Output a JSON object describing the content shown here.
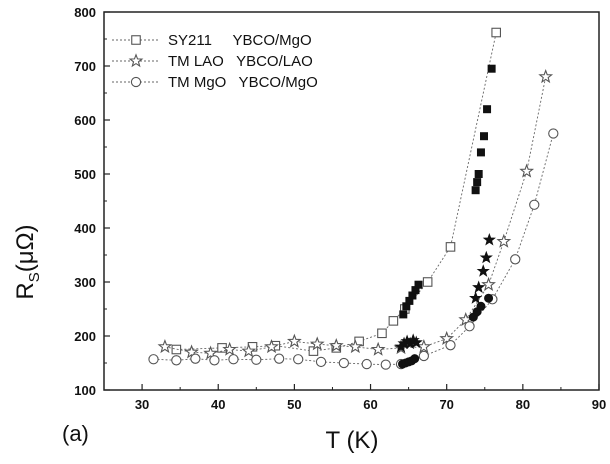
{
  "chart_data": {
    "type": "scatter",
    "panel_label": "(a)",
    "xlabel": "T (K)",
    "ylabel_main": "R",
    "ylabel_sub": "S",
    "ylabel_unit": "(μΩ)",
    "xlim": [
      25,
      90
    ],
    "ylim": [
      100,
      800
    ],
    "x_ticks": [
      30,
      40,
      50,
      60,
      70,
      80,
      90
    ],
    "y_ticks": [
      100,
      200,
      300,
      400,
      500,
      600,
      700,
      800
    ],
    "legend_position": "top-left",
    "series": [
      {
        "name": "SY211 YBCO/MgO",
        "legend_text": "SY211     YBCO/MgO",
        "marker": "square",
        "open_points": [
          {
            "x": 34.5,
            "y": 175
          },
          {
            "x": 40.5,
            "y": 178
          },
          {
            "x": 44.5,
            "y": 180
          },
          {
            "x": 47.5,
            "y": 182
          },
          {
            "x": 52.5,
            "y": 172
          },
          {
            "x": 55.5,
            "y": 178
          },
          {
            "x": 58.5,
            "y": 190
          },
          {
            "x": 61.5,
            "y": 205
          },
          {
            "x": 63.0,
            "y": 228
          },
          {
            "x": 64.5,
            "y": 250
          },
          {
            "x": 67.5,
            "y": 300
          },
          {
            "x": 70.5,
            "y": 365
          },
          {
            "x": 76.5,
            "y": 762
          }
        ],
        "filled_points": [
          {
            "x": 64.3,
            "y": 240
          },
          {
            "x": 64.7,
            "y": 255
          },
          {
            "x": 65.1,
            "y": 265
          },
          {
            "x": 65.5,
            "y": 275
          },
          {
            "x": 65.9,
            "y": 285
          },
          {
            "x": 66.3,
            "y": 295
          },
          {
            "x": 73.8,
            "y": 470
          },
          {
            "x": 74.0,
            "y": 485
          },
          {
            "x": 74.2,
            "y": 500
          },
          {
            "x": 74.5,
            "y": 540
          },
          {
            "x": 74.9,
            "y": 570
          },
          {
            "x": 75.3,
            "y": 620
          },
          {
            "x": 75.9,
            "y": 695
          }
        ]
      },
      {
        "name": "TM LAO YBCO/LAO",
        "legend_text": "TM LAO   YBCO/LAO",
        "marker": "star",
        "open_points": [
          {
            "x": 33.0,
            "y": 180
          },
          {
            "x": 36.5,
            "y": 170
          },
          {
            "x": 39.0,
            "y": 168
          },
          {
            "x": 41.5,
            "y": 175
          },
          {
            "x": 44.0,
            "y": 172
          },
          {
            "x": 47.0,
            "y": 180
          },
          {
            "x": 50.0,
            "y": 190
          },
          {
            "x": 53.0,
            "y": 185
          },
          {
            "x": 55.5,
            "y": 182
          },
          {
            "x": 58.0,
            "y": 180
          },
          {
            "x": 61.0,
            "y": 175
          },
          {
            "x": 64.0,
            "y": 178
          },
          {
            "x": 67.0,
            "y": 180
          },
          {
            "x": 70.0,
            "y": 195
          },
          {
            "x": 72.5,
            "y": 230
          },
          {
            "x": 75.5,
            "y": 295
          },
          {
            "x": 77.5,
            "y": 375
          },
          {
            "x": 80.5,
            "y": 505
          },
          {
            "x": 83.0,
            "y": 680
          }
        ],
        "filled_points": [
          {
            "x": 64.0,
            "y": 180
          },
          {
            "x": 64.4,
            "y": 186
          },
          {
            "x": 64.8,
            "y": 190
          },
          {
            "x": 65.2,
            "y": 186
          },
          {
            "x": 65.6,
            "y": 192
          },
          {
            "x": 66.0,
            "y": 188
          },
          {
            "x": 73.8,
            "y": 270
          },
          {
            "x": 74.2,
            "y": 290
          },
          {
            "x": 74.8,
            "y": 320
          },
          {
            "x": 75.2,
            "y": 345
          },
          {
            "x": 75.6,
            "y": 378
          }
        ]
      },
      {
        "name": "TM MgO YBCO/MgO",
        "legend_text": "TM MgO   YBCO/MgO",
        "marker": "circle",
        "open_points": [
          {
            "x": 31.5,
            "y": 157
          },
          {
            "x": 34.5,
            "y": 155
          },
          {
            "x": 37.0,
            "y": 158
          },
          {
            "x": 39.5,
            "y": 155
          },
          {
            "x": 42.0,
            "y": 157
          },
          {
            "x": 45.0,
            "y": 156
          },
          {
            "x": 48.0,
            "y": 158
          },
          {
            "x": 50.5,
            "y": 157
          },
          {
            "x": 53.5,
            "y": 152
          },
          {
            "x": 56.5,
            "y": 150
          },
          {
            "x": 59.5,
            "y": 148
          },
          {
            "x": 62.0,
            "y": 147
          },
          {
            "x": 64.0,
            "y": 148
          },
          {
            "x": 67.0,
            "y": 163
          },
          {
            "x": 70.5,
            "y": 183
          },
          {
            "x": 73.0,
            "y": 218
          },
          {
            "x": 76.0,
            "y": 268
          },
          {
            "x": 79.0,
            "y": 342
          },
          {
            "x": 81.5,
            "y": 443
          },
          {
            "x": 84.0,
            "y": 575
          }
        ],
        "filled_points": [
          {
            "x": 64.2,
            "y": 148
          },
          {
            "x": 64.6,
            "y": 150
          },
          {
            "x": 65.0,
            "y": 152
          },
          {
            "x": 65.4,
            "y": 154
          },
          {
            "x": 65.8,
            "y": 158
          },
          {
            "x": 73.5,
            "y": 235
          },
          {
            "x": 74.0,
            "y": 245
          },
          {
            "x": 74.5,
            "y": 255
          },
          {
            "x": 75.5,
            "y": 270
          }
        ]
      }
    ]
  }
}
